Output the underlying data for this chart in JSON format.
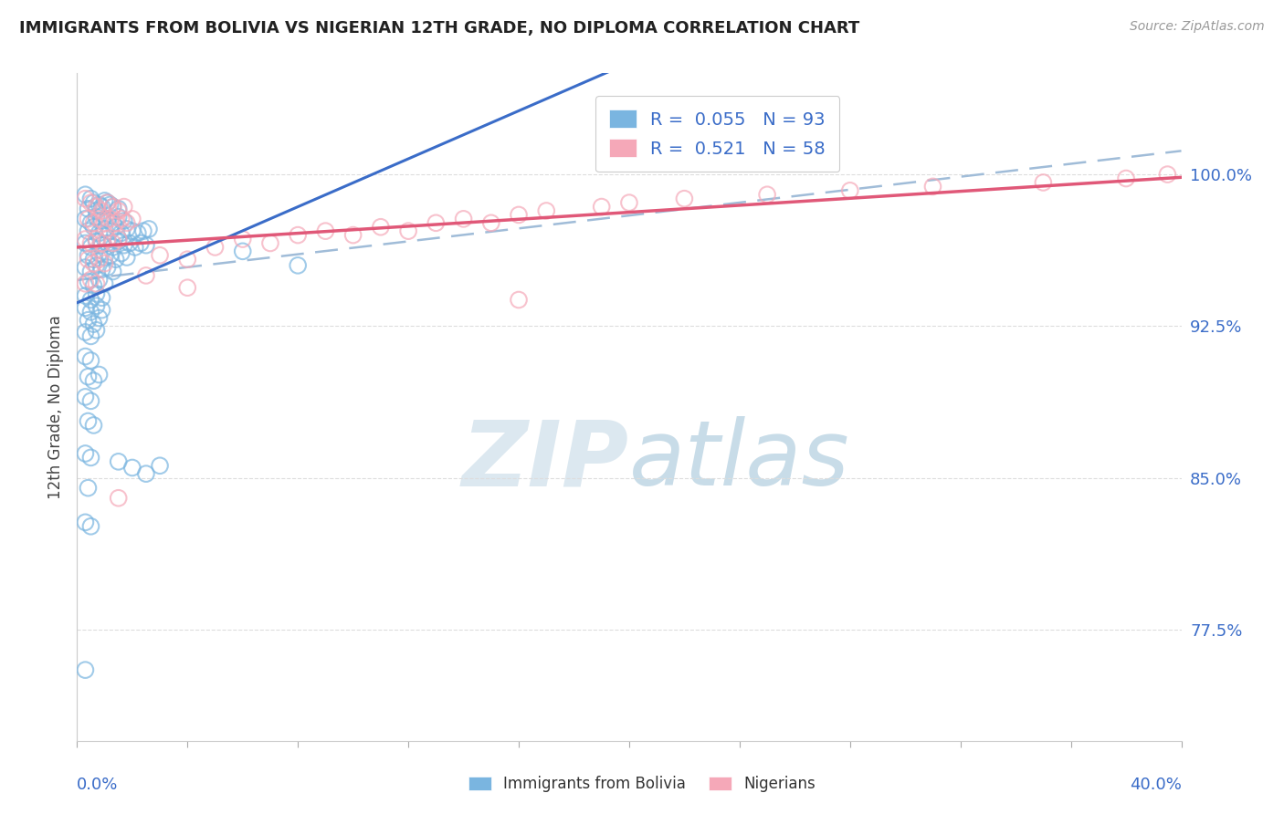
{
  "title": "IMMIGRANTS FROM BOLIVIA VS NIGERIAN 12TH GRADE, NO DIPLOMA CORRELATION CHART",
  "source": "Source: ZipAtlas.com",
  "ylabel": "12th Grade, No Diploma",
  "y_ticks": [
    0.775,
    0.85,
    0.925,
    1.0
  ],
  "y_tick_labels": [
    "77.5%",
    "85.0%",
    "92.5%",
    "100.0%"
  ],
  "x_min": 0.0,
  "x_max": 0.4,
  "y_min": 0.72,
  "y_max": 1.05,
  "legend_label1": "Immigrants from Bolivia",
  "legend_label2": "Nigerians",
  "bolivia_color": "#7ab5e0",
  "nigeria_color": "#f5a8b8",
  "bolivia_line_color": "#3a6cc8",
  "nigeria_line_color": "#e05878",
  "dashed_line_color": "#a0bcd8",
  "bolivia_scatter": [
    [
      0.003,
      0.99
    ],
    [
      0.005,
      0.988
    ],
    [
      0.008,
      0.985
    ],
    [
      0.01,
      0.987
    ],
    [
      0.004,
      0.983
    ],
    [
      0.007,
      0.982
    ],
    [
      0.006,
      0.986
    ],
    [
      0.009,
      0.984
    ],
    [
      0.012,
      0.985
    ],
    [
      0.015,
      0.983
    ],
    [
      0.011,
      0.986
    ],
    [
      0.013,
      0.984
    ],
    [
      0.003,
      0.978
    ],
    [
      0.005,
      0.976
    ],
    [
      0.007,
      0.979
    ],
    [
      0.009,
      0.977
    ],
    [
      0.011,
      0.978
    ],
    [
      0.013,
      0.976
    ],
    [
      0.015,
      0.979
    ],
    [
      0.017,
      0.977
    ],
    [
      0.004,
      0.972
    ],
    [
      0.006,
      0.974
    ],
    [
      0.008,
      0.971
    ],
    [
      0.01,
      0.973
    ],
    [
      0.012,
      0.972
    ],
    [
      0.014,
      0.974
    ],
    [
      0.016,
      0.971
    ],
    [
      0.018,
      0.973
    ],
    [
      0.02,
      0.972
    ],
    [
      0.022,
      0.971
    ],
    [
      0.024,
      0.972
    ],
    [
      0.026,
      0.973
    ],
    [
      0.003,
      0.966
    ],
    [
      0.005,
      0.964
    ],
    [
      0.007,
      0.967
    ],
    [
      0.009,
      0.965
    ],
    [
      0.011,
      0.966
    ],
    [
      0.013,
      0.964
    ],
    [
      0.015,
      0.967
    ],
    [
      0.017,
      0.965
    ],
    [
      0.019,
      0.966
    ],
    [
      0.021,
      0.964
    ],
    [
      0.023,
      0.966
    ],
    [
      0.025,
      0.965
    ],
    [
      0.004,
      0.96
    ],
    [
      0.006,
      0.958
    ],
    [
      0.008,
      0.961
    ],
    [
      0.01,
      0.959
    ],
    [
      0.012,
      0.96
    ],
    [
      0.014,
      0.958
    ],
    [
      0.016,
      0.961
    ],
    [
      0.018,
      0.959
    ],
    [
      0.003,
      0.954
    ],
    [
      0.005,
      0.952
    ],
    [
      0.007,
      0.955
    ],
    [
      0.009,
      0.953
    ],
    [
      0.011,
      0.954
    ],
    [
      0.013,
      0.952
    ],
    [
      0.004,
      0.947
    ],
    [
      0.006,
      0.945
    ],
    [
      0.008,
      0.948
    ],
    [
      0.01,
      0.946
    ],
    [
      0.003,
      0.94
    ],
    [
      0.005,
      0.938
    ],
    [
      0.007,
      0.941
    ],
    [
      0.009,
      0.939
    ],
    [
      0.003,
      0.934
    ],
    [
      0.005,
      0.932
    ],
    [
      0.007,
      0.935
    ],
    [
      0.009,
      0.933
    ],
    [
      0.004,
      0.928
    ],
    [
      0.006,
      0.926
    ],
    [
      0.008,
      0.929
    ],
    [
      0.003,
      0.922
    ],
    [
      0.005,
      0.92
    ],
    [
      0.007,
      0.923
    ],
    [
      0.003,
      0.91
    ],
    [
      0.005,
      0.908
    ],
    [
      0.004,
      0.9
    ],
    [
      0.006,
      0.898
    ],
    [
      0.008,
      0.901
    ],
    [
      0.003,
      0.89
    ],
    [
      0.005,
      0.888
    ],
    [
      0.004,
      0.878
    ],
    [
      0.006,
      0.876
    ],
    [
      0.003,
      0.862
    ],
    [
      0.005,
      0.86
    ],
    [
      0.004,
      0.845
    ],
    [
      0.003,
      0.828
    ],
    [
      0.005,
      0.826
    ],
    [
      0.015,
      0.858
    ],
    [
      0.02,
      0.855
    ],
    [
      0.025,
      0.852
    ],
    [
      0.03,
      0.856
    ],
    [
      0.06,
      0.962
    ],
    [
      0.08,
      0.955
    ],
    [
      0.003,
      0.755
    ]
  ],
  "nigeria_scatter": [
    [
      0.003,
      0.988
    ],
    [
      0.005,
      0.986
    ],
    [
      0.007,
      0.984
    ],
    [
      0.009,
      0.982
    ],
    [
      0.011,
      0.986
    ],
    [
      0.013,
      0.984
    ],
    [
      0.015,
      0.982
    ],
    [
      0.017,
      0.984
    ],
    [
      0.004,
      0.978
    ],
    [
      0.006,
      0.976
    ],
    [
      0.008,
      0.978
    ],
    [
      0.01,
      0.976
    ],
    [
      0.012,
      0.978
    ],
    [
      0.014,
      0.976
    ],
    [
      0.016,
      0.978
    ],
    [
      0.018,
      0.976
    ],
    [
      0.02,
      0.978
    ],
    [
      0.003,
      0.968
    ],
    [
      0.005,
      0.966
    ],
    [
      0.007,
      0.968
    ],
    [
      0.009,
      0.966
    ],
    [
      0.011,
      0.968
    ],
    [
      0.013,
      0.966
    ],
    [
      0.015,
      0.968
    ],
    [
      0.004,
      0.958
    ],
    [
      0.006,
      0.956
    ],
    [
      0.008,
      0.958
    ],
    [
      0.01,
      0.956
    ],
    [
      0.03,
      0.96
    ],
    [
      0.04,
      0.958
    ],
    [
      0.05,
      0.964
    ],
    [
      0.06,
      0.968
    ],
    [
      0.07,
      0.966
    ],
    [
      0.08,
      0.97
    ],
    [
      0.09,
      0.972
    ],
    [
      0.1,
      0.97
    ],
    [
      0.11,
      0.974
    ],
    [
      0.12,
      0.972
    ],
    [
      0.13,
      0.976
    ],
    [
      0.14,
      0.978
    ],
    [
      0.15,
      0.976
    ],
    [
      0.16,
      0.98
    ],
    [
      0.17,
      0.982
    ],
    [
      0.19,
      0.984
    ],
    [
      0.2,
      0.986
    ],
    [
      0.22,
      0.988
    ],
    [
      0.25,
      0.99
    ],
    [
      0.28,
      0.992
    ],
    [
      0.31,
      0.994
    ],
    [
      0.35,
      0.996
    ],
    [
      0.38,
      0.998
    ],
    [
      0.395,
      1.0
    ],
    [
      0.003,
      0.946
    ],
    [
      0.005,
      0.948
    ],
    [
      0.007,
      0.946
    ],
    [
      0.025,
      0.95
    ],
    [
      0.04,
      0.944
    ],
    [
      0.015,
      0.84
    ],
    [
      0.16,
      0.938
    ]
  ]
}
